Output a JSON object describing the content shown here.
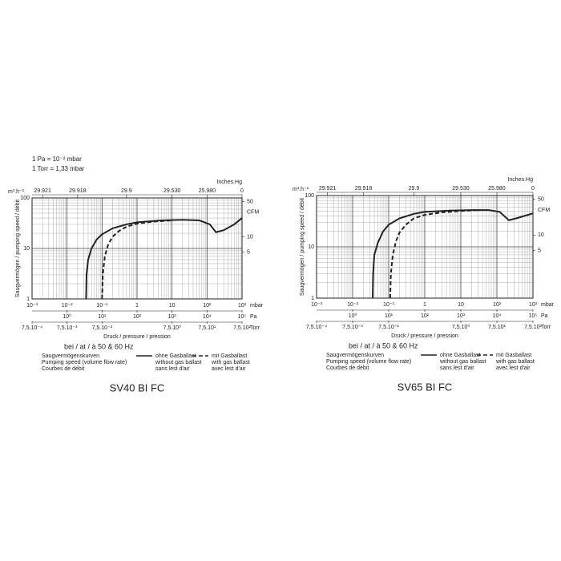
{
  "chart_data": [
    {
      "type": "line",
      "title": "SV40 BI FC",
      "notes": [
        "1 Pa = 10⁻² mbar",
        "1 Torr = 1,33 mbar"
      ],
      "y_label": "Saugvermögen / pumping speed / débit",
      "y_unit": "m³.h⁻¹",
      "x_label": "Druck / pressure / pression",
      "x_unit": "mbar",
      "frequency": "bei / at / à 50 & 60 Hz",
      "legend_title": "Saugvermögenskurven\nPumping speed (volume flow rate)\nCourbes de débit",
      "log_x": true,
      "log_y": true,
      "grid": true,
      "xlim": [
        0.001,
        1000
      ],
      "ylim": [
        1,
        100
      ],
      "xticks": [
        {
          "value": 0.001,
          "label": "10⁻³"
        },
        {
          "value": 0.01,
          "label": "10⁻²"
        },
        {
          "value": 0.1,
          "label": "10⁻¹"
        },
        1,
        10,
        {
          "value": 100,
          "label": "10²"
        },
        {
          "value": 1000,
          "label": "10³"
        }
      ],
      "yticks": [
        1,
        10,
        100
      ],
      "pa_axis": {
        "unit": "Pa",
        "ticks": [
          {
            "value": 0.01,
            "label": "10⁰"
          },
          {
            "value": 0.1,
            "label": "10¹"
          },
          {
            "value": 1,
            "label": "10²"
          },
          {
            "value": 10,
            "label": "10³"
          },
          {
            "value": 100,
            "label": "10⁴"
          },
          {
            "value": 1000,
            "label": "10⁵"
          }
        ]
      },
      "torr_axis": {
        "unit": "Torr",
        "ticks": [
          {
            "value": 0.001,
            "label": "7,5.10⁻⁴"
          },
          {
            "value": 0.01,
            "label": "7,5.10⁻³"
          },
          {
            "value": 0.1,
            "label": "7,5.10⁻²"
          },
          {
            "value": 10,
            "label": "7,5.10⁰"
          },
          {
            "value": 100,
            "label": "7,5.10¹"
          },
          {
            "value": 1000,
            "label": "7,5.10²"
          }
        ]
      },
      "top_axis": {
        "unit": "Inches.Hg",
        "ticks": [
          {
            "value": 0.002,
            "label": "29.921"
          },
          {
            "value": 0.02,
            "label": "29.918"
          },
          {
            "value": 0.5,
            "label": "29.9"
          },
          {
            "value": 10,
            "label": "29.530"
          },
          {
            "value": 100,
            "label": "25.980"
          },
          {
            "value": 1000,
            "label": "0"
          }
        ]
      },
      "right_axis": {
        "unit": "CFM",
        "ticks": [
          {
            "value": 85,
            "label": "50"
          },
          {
            "value": 17,
            "label": "10"
          },
          {
            "value": 8.5,
            "label": "5"
          }
        ]
      },
      "series": [
        {
          "name": "ohne Gasballast\nwithout gas ballast\nsans lest d'air",
          "color": "#222222",
          "line_style": "solid",
          "x": [
            0.035,
            0.036,
            0.04,
            0.05,
            0.07,
            0.1,
            0.2,
            0.5,
            1,
            5,
            20,
            60,
            120,
            180,
            300,
            600,
            1000
          ],
          "values": [
            1,
            3,
            6,
            10,
            15,
            19,
            25,
            30,
            33,
            36,
            37,
            36,
            30,
            21,
            23,
            30,
            40
          ]
        },
        {
          "name": "mit Gasballast\nwith gas ballast\navec lest d'air",
          "color": "#222222",
          "line_style": "dashed",
          "x": [
            0.1,
            0.105,
            0.12,
            0.15,
            0.2,
            0.3,
            0.5,
            1,
            3,
            10
          ],
          "values": [
            1,
            3,
            7,
            12,
            17,
            22,
            27,
            31,
            34,
            36
          ]
        }
      ]
    },
    {
      "type": "line",
      "title": "SV65 BI FC",
      "y_label": "Saugvermögen / pumping speed / débit",
      "y_unit": "m³.h⁻¹",
      "x_label": "Druck / pressure / pression",
      "x_unit": "mbar",
      "frequency": "bei / at / à 50 & 60 Hz",
      "legend_title": "Saugvermögenskurven\nPumping speed (volume flow rate)\nCourbes de débit",
      "log_x": true,
      "log_y": true,
      "grid": true,
      "xlim": [
        0.001,
        1000
      ],
      "ylim": [
        1,
        100
      ],
      "xticks": [
        {
          "value": 0.001,
          "label": "10⁻³"
        },
        {
          "value": 0.01,
          "label": "10⁻²"
        },
        {
          "value": 0.1,
          "label": "10⁻¹"
        },
        1,
        10,
        {
          "value": 100,
          "label": "10²"
        },
        {
          "value": 1000,
          "label": "10³"
        }
      ],
      "yticks": [
        1,
        10,
        100
      ],
      "pa_axis": {
        "unit": "Pa",
        "ticks": [
          {
            "value": 0.01,
            "label": "10⁰"
          },
          {
            "value": 0.1,
            "label": "10¹"
          },
          {
            "value": 1,
            "label": "10²"
          },
          {
            "value": 10,
            "label": "10³"
          },
          {
            "value": 100,
            "label": "10⁴"
          },
          {
            "value": 1000,
            "label": "10⁵"
          }
        ]
      },
      "torr_axis": {
        "unit": "Torr",
        "ticks": [
          {
            "value": 0.001,
            "label": "7,5.10⁻⁴"
          },
          {
            "value": 0.01,
            "label": "7,5.10⁻³"
          },
          {
            "value": 0.1,
            "label": "7,5.10⁻²"
          },
          {
            "value": 10,
            "label": "7,5.10⁰"
          },
          {
            "value": 100,
            "label": "7,5.10¹"
          },
          {
            "value": 1000,
            "label": "7,5.10²"
          }
        ]
      },
      "top_axis": {
        "unit": "Inches.Hg",
        "ticks": [
          {
            "value": 0.002,
            "label": "29.921"
          },
          {
            "value": 0.02,
            "label": "29.918"
          },
          {
            "value": 0.5,
            "label": "29.9"
          },
          {
            "value": 10,
            "label": "29.530"
          },
          {
            "value": 100,
            "label": "25.980"
          },
          {
            "value": 1000,
            "label": "0"
          }
        ]
      },
      "right_axis": {
        "unit": "CFM",
        "ticks": [
          {
            "value": 85,
            "label": "50"
          },
          {
            "value": 17,
            "label": "10"
          },
          {
            "value": 8.5,
            "label": "5"
          }
        ]
      },
      "series": [
        {
          "name": "ohne Gasballast\nwithout gas ballast\nsans lest d'air",
          "color": "#222222",
          "line_style": "solid",
          "x": [
            0.036,
            0.037,
            0.04,
            0.05,
            0.07,
            0.1,
            0.2,
            0.5,
            1,
            5,
            20,
            60,
            120,
            215,
            400,
            1000
          ],
          "values": [
            1,
            3,
            7,
            12,
            20,
            27,
            36,
            44,
            48,
            51,
            52,
            52,
            48,
            33,
            37,
            45
          ]
        },
        {
          "name": "mit Gasballast\nwith gas ballast\navec lest d'air",
          "color": "#222222",
          "line_style": "dashed",
          "x": [
            0.11,
            0.115,
            0.13,
            0.16,
            0.2,
            0.3,
            0.5,
            1,
            3,
            10,
            30
          ],
          "values": [
            1,
            3,
            7,
            13,
            19,
            27,
            36,
            42,
            47,
            50,
            52
          ]
        }
      ]
    }
  ]
}
